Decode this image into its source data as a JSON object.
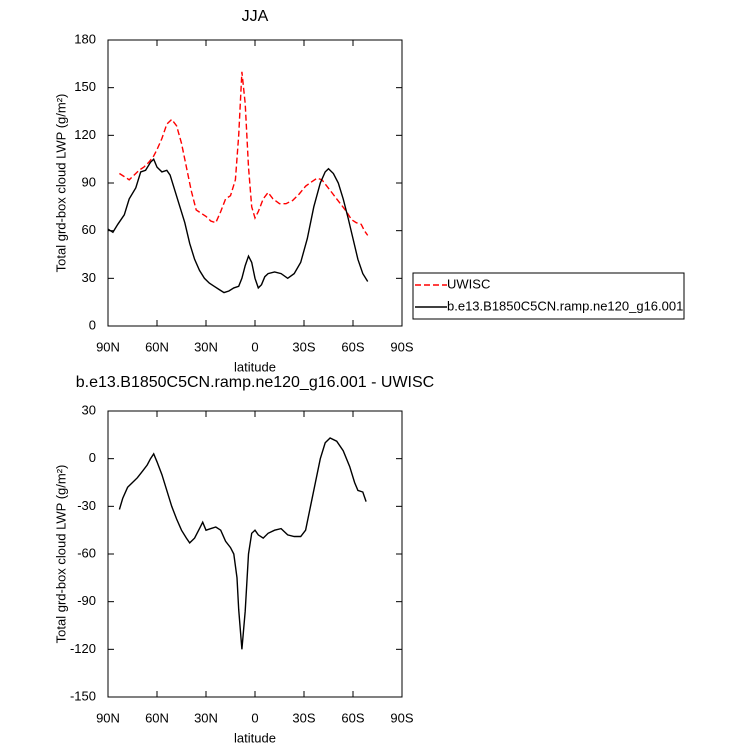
{
  "chart_data": [
    {
      "type": "line",
      "title": "JJA",
      "xlabel": "latitude",
      "ylabel": "Total grd-box cloud LWP (g/m²)",
      "xlim": [
        90,
        -90
      ],
      "xticks": [
        {
          "value": 90,
          "label": "90N"
        },
        {
          "value": 60,
          "label": "60N"
        },
        {
          "value": 30,
          "label": "30N"
        },
        0,
        {
          "value": -30,
          "label": "30S"
        },
        {
          "value": -60,
          "label": "60S"
        },
        {
          "value": -90,
          "label": "90S"
        }
      ],
      "ylim": [
        0,
        180
      ],
      "yticks": [
        0,
        30,
        60,
        90,
        120,
        150,
        180
      ],
      "legend": "right",
      "series": [
        {
          "name": "UWISC",
          "color": "#ff0000",
          "dash": true,
          "x": [
            83,
            80,
            77,
            74,
            71,
            68,
            65,
            62,
            60,
            57,
            54,
            51,
            48,
            45,
            42,
            39,
            36,
            33,
            30,
            27,
            24,
            21,
            18,
            15,
            12,
            10,
            8,
            6,
            4,
            2,
            0,
            -2,
            -5,
            -8,
            -11,
            -15,
            -19,
            -23,
            -27,
            -31,
            -35,
            -38,
            -41,
            -44,
            -47,
            -50,
            -53,
            -56,
            -59,
            -62,
            -65,
            -67,
            -69
          ],
          "values": [
            96,
            94,
            92,
            95,
            98,
            100,
            103,
            107,
            111,
            118,
            127,
            130,
            126,
            115,
            100,
            85,
            73,
            71,
            69,
            66,
            65,
            72,
            80,
            82,
            92,
            120,
            160,
            140,
            100,
            75,
            68,
            72,
            80,
            84,
            80,
            77,
            77,
            79,
            83,
            88,
            91,
            93,
            92,
            88,
            84,
            80,
            76,
            72,
            67,
            65,
            64,
            60,
            57
          ]
        },
        {
          "name": "b.e13.B1850C5CN.ramp.ne120_g16.001",
          "color": "#000000",
          "dash": false,
          "x": [
            90,
            87,
            84,
            80,
            77,
            73,
            70,
            67,
            64,
            62,
            60,
            57,
            54,
            52,
            49,
            46,
            43,
            40,
            37,
            34,
            31,
            28,
            25,
            22,
            19,
            16,
            13,
            10,
            8,
            6,
            4,
            2,
            0,
            -2,
            -4,
            -6,
            -8,
            -12,
            -16,
            -20,
            -24,
            -28,
            -32,
            -36,
            -40,
            -43,
            -45,
            -48,
            -51,
            -54,
            -57,
            -60,
            -63,
            -66,
            -69
          ],
          "values": [
            61,
            59,
            64,
            70,
            80,
            87,
            97,
            98,
            103,
            105,
            100,
            97,
            98,
            95,
            85,
            75,
            65,
            52,
            42,
            35,
            30,
            27,
            25,
            23,
            21,
            22,
            24,
            25,
            30,
            38,
            44,
            40,
            30,
            24,
            26,
            31,
            33,
            34,
            33,
            30,
            33,
            40,
            55,
            75,
            90,
            97,
            99,
            96,
            90,
            80,
            68,
            55,
            42,
            33,
            28
          ]
        }
      ]
    },
    {
      "type": "line",
      "title": "b.e13.B1850C5CN.ramp.ne120_g16.001 - UWISC",
      "xlabel": "latitude",
      "ylabel": "Total grd-box cloud LWP (g/m²)",
      "xlim": [
        90,
        -90
      ],
      "xticks": [
        {
          "value": 90,
          "label": "90N"
        },
        {
          "value": 60,
          "label": "60N"
        },
        {
          "value": 30,
          "label": "30N"
        },
        0,
        {
          "value": -30,
          "label": "30S"
        },
        {
          "value": -60,
          "label": "60S"
        },
        {
          "value": -90,
          "label": "90S"
        }
      ],
      "ylim": [
        -150,
        30
      ],
      "yticks": [
        -150,
        -120,
        -90,
        -60,
        -30,
        0,
        30
      ],
      "series": [
        {
          "color": "#000000",
          "dash": false,
          "x": [
            83,
            81,
            78,
            75,
            72,
            69,
            66,
            64,
            62,
            60,
            57,
            54,
            51,
            48,
            45,
            42,
            40,
            37,
            34,
            32,
            30,
            27,
            24,
            21,
            18,
            15,
            13,
            11,
            10,
            8,
            6,
            4,
            2,
            0,
            -2,
            -5,
            -8,
            -12,
            -16,
            -20,
            -24,
            -28,
            -31,
            -34,
            -37,
            -40,
            -43,
            -46,
            -50,
            -54,
            -58,
            -61,
            -63,
            -66,
            -68
          ],
          "values": [
            -32,
            -25,
            -18,
            -15,
            -12,
            -8,
            -4,
            0,
            3,
            -2,
            -10,
            -20,
            -30,
            -38,
            -45,
            -50,
            -53,
            -50,
            -44,
            -40,
            -45,
            -44,
            -43,
            -45,
            -52,
            -56,
            -60,
            -75,
            -95,
            -120,
            -96,
            -60,
            -47,
            -45,
            -48,
            -50,
            -47,
            -45,
            -44,
            -48,
            -49,
            -49,
            -45,
            -30,
            -15,
            0,
            10,
            13,
            11,
            5,
            -5,
            -15,
            -20,
            -21,
            -27
          ]
        }
      ]
    }
  ]
}
